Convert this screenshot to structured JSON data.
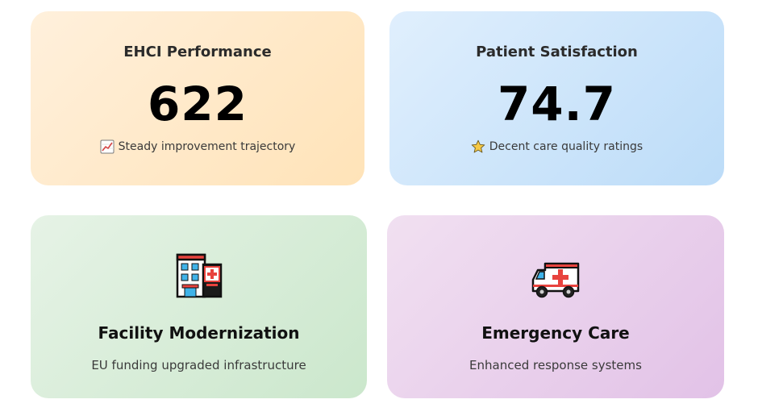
{
  "cards": {
    "ehci": {
      "title": "EHCI Performance",
      "value": "622",
      "note": "Steady improvement trajectory",
      "icon": "chart-increasing-icon"
    },
    "satisfaction": {
      "title": "Patient Satisfaction",
      "value": "74.7",
      "note": "Decent care quality ratings",
      "icon": "star-icon"
    },
    "facility": {
      "title": "Facility Modernization",
      "description": "EU funding upgraded infrastructure",
      "icon": "hospital-icon"
    },
    "emergency": {
      "title": "Emergency Care",
      "description": "Enhanced response systems",
      "icon": "ambulance-icon"
    }
  }
}
